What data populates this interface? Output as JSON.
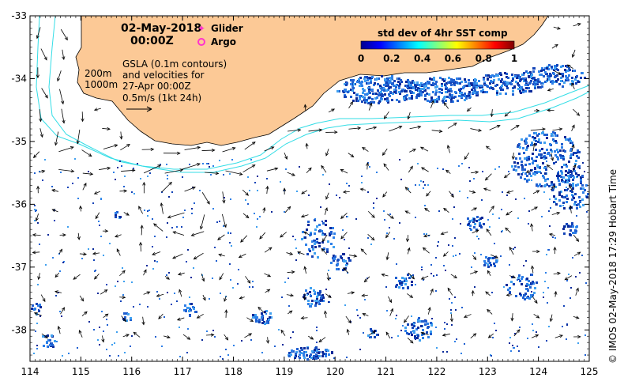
{
  "header": {
    "date": "02-May-2018",
    "time": "00:00Z"
  },
  "legend_symbols": {
    "glider": {
      "label": "Glider",
      "color": "#ff33cc"
    },
    "argo": {
      "label": "Argo",
      "color": "#ff33cc"
    }
  },
  "annotations": {
    "depth_200": "200m",
    "depth_1000": "1000m",
    "gsla_line1": "GSLA (0.1m contours)",
    "gsla_line2": "and velocities for",
    "gsla_line3": "27-Apr 00:00Z",
    "gsla_line4": "0.5m/s (1kt 24h)"
  },
  "colorbar": {
    "title": "std dev of 4hr SST comp",
    "ticks": [
      "0",
      "0.2",
      "0.4",
      "0.6",
      "0.8",
      "1"
    ],
    "colors": [
      "#00008f",
      "#0000ff",
      "#0080ff",
      "#00ffff",
      "#80ff80",
      "#ffff00",
      "#ff8000",
      "#ff0000",
      "#800000"
    ]
  },
  "axes": {
    "x_ticks": [
      "114",
      "115",
      "116",
      "117",
      "118",
      "119",
      "120",
      "121",
      "122",
      "123",
      "124",
      "125"
    ],
    "y_ticks": [
      "-33",
      "-34",
      "-35",
      "-36",
      "-37",
      "-38"
    ],
    "lon_range": [
      114,
      125
    ],
    "lat_range": [
      -38.5,
      -33
    ]
  },
  "credit": "© IMOS 02-May-2018 17:29 Hobart Time",
  "colors": {
    "land": "#fcc996",
    "isobath": "#33dde6",
    "data_blue": "#1f5fd0",
    "data_dark": "#0a2a9a"
  }
}
